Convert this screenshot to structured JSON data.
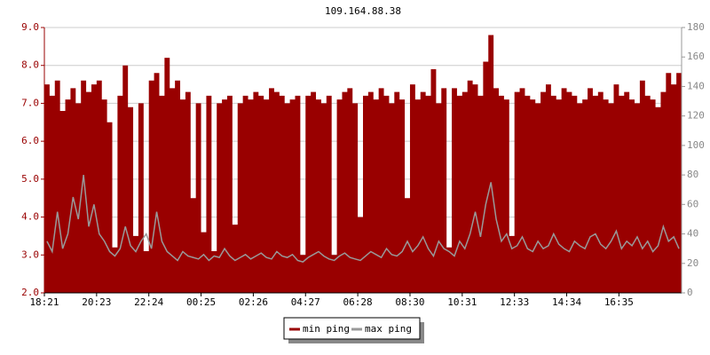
{
  "chart_data": {
    "type": "area-line",
    "title": "109.164.88.38",
    "categories": [
      "18:21",
      null,
      null,
      null,
      null,
      null,
      null,
      null,
      null,
      null,
      "20:23",
      null,
      null,
      null,
      null,
      null,
      null,
      null,
      null,
      null,
      "22:24",
      null,
      null,
      null,
      null,
      null,
      null,
      null,
      null,
      null,
      "00:25",
      null,
      null,
      null,
      null,
      null,
      null,
      null,
      null,
      null,
      "02:26",
      null,
      null,
      null,
      null,
      null,
      null,
      null,
      null,
      null,
      "04:27",
      null,
      null,
      null,
      null,
      null,
      null,
      null,
      null,
      null,
      "06:28",
      null,
      null,
      null,
      null,
      null,
      null,
      null,
      null,
      null,
      "08:30",
      null,
      null,
      null,
      null,
      null,
      null,
      null,
      null,
      null,
      "10:31",
      null,
      null,
      null,
      null,
      null,
      null,
      null,
      null,
      null,
      "12:33",
      null,
      null,
      null,
      null,
      null,
      null,
      null,
      null,
      null,
      "14:34",
      null,
      null,
      null,
      null,
      null,
      null,
      null,
      null,
      null,
      "16:35",
      null,
      null,
      null,
      null,
      null,
      null,
      null,
      null,
      null,
      null,
      null
    ],
    "series": [
      {
        "name": "min ping",
        "color": "#990000",
        "axis": "y",
        "values": [
          7.5,
          7.2,
          7.6,
          6.8,
          7.1,
          7.4,
          7.0,
          7.6,
          7.3,
          7.5,
          7.6,
          7.1,
          6.5,
          3.2,
          7.2,
          8.0,
          6.9,
          3.5,
          7.0,
          3.1,
          7.6,
          7.8,
          7.2,
          8.2,
          7.4,
          7.6,
          7.1,
          7.3,
          4.5,
          7.0,
          3.6,
          7.2,
          3.1,
          7.0,
          7.1,
          7.2,
          3.8,
          7.0,
          7.2,
          7.1,
          7.3,
          7.2,
          7.1,
          7.4,
          7.3,
          7.2,
          7.0,
          7.1,
          7.2,
          3.0,
          7.2,
          7.3,
          7.1,
          7.0,
          7.2,
          3.0,
          7.1,
          7.3,
          7.4,
          7.0,
          4.0,
          7.2,
          7.3,
          7.1,
          7.4,
          7.2,
          7.0,
          7.3,
          7.1,
          4.5,
          7.5,
          7.1,
          7.3,
          7.2,
          7.9,
          7.0,
          7.4,
          3.2,
          7.4,
          7.2,
          7.3,
          7.6,
          7.5,
          7.2,
          8.1,
          8.8,
          7.4,
          7.2,
          7.1,
          3.5,
          7.3,
          7.4,
          7.2,
          7.1,
          7.0,
          7.3,
          7.5,
          7.2,
          7.1,
          7.4,
          7.3,
          7.2,
          7.0,
          7.1,
          7.4,
          7.2,
          7.3,
          7.1,
          7.0,
          7.5,
          7.2,
          7.3,
          7.1,
          7.0,
          7.6,
          7.2,
          7.1,
          6.9,
          7.3,
          7.8,
          7.5,
          7.8
        ]
      },
      {
        "name": "max ping",
        "color": "#999999",
        "axis": "y2",
        "values": [
          35,
          28,
          55,
          30,
          40,
          65,
          50,
          80,
          45,
          60,
          40,
          35,
          28,
          25,
          30,
          45,
          32,
          28,
          35,
          40,
          30,
          55,
          35,
          28,
          25,
          22,
          28,
          25,
          24,
          23,
          26,
          22,
          25,
          24,
          30,
          25,
          22,
          24,
          26,
          23,
          25,
          27,
          24,
          23,
          28,
          25,
          24,
          26,
          22,
          21,
          24,
          26,
          28,
          25,
          23,
          22,
          25,
          27,
          24,
          23,
          22,
          25,
          28,
          26,
          24,
          30,
          26,
          25,
          28,
          35,
          28,
          32,
          38,
          30,
          25,
          35,
          30,
          28,
          25,
          35,
          30,
          40,
          55,
          38,
          60,
          75,
          50,
          35,
          40,
          30,
          32,
          38,
          30,
          28,
          35,
          30,
          32,
          40,
          33,
          30,
          28,
          35,
          32,
          30,
          38,
          40,
          33,
          30,
          35,
          42,
          30,
          35,
          32,
          38,
          30,
          35,
          28,
          32,
          45,
          35,
          38,
          30
        ]
      }
    ],
    "ylim": [
      2,
      9
    ],
    "yticks": [
      {
        "value": 2,
        "label": "2.0"
      },
      {
        "value": 3,
        "label": "3.0"
      },
      {
        "value": 4,
        "label": "4.0"
      },
      {
        "value": 5,
        "label": "5.0"
      },
      {
        "value": 6,
        "label": "6.0"
      },
      {
        "value": 7,
        "label": "7.0"
      },
      {
        "value": 8,
        "label": "8.0"
      },
      {
        "value": 9,
        "label": "9.0"
      }
    ],
    "y2lim": [
      0,
      180
    ],
    "y2ticks": [
      0,
      20,
      40,
      60,
      80,
      100,
      120,
      140,
      160,
      180
    ],
    "grid": true,
    "legend": "bottom"
  }
}
